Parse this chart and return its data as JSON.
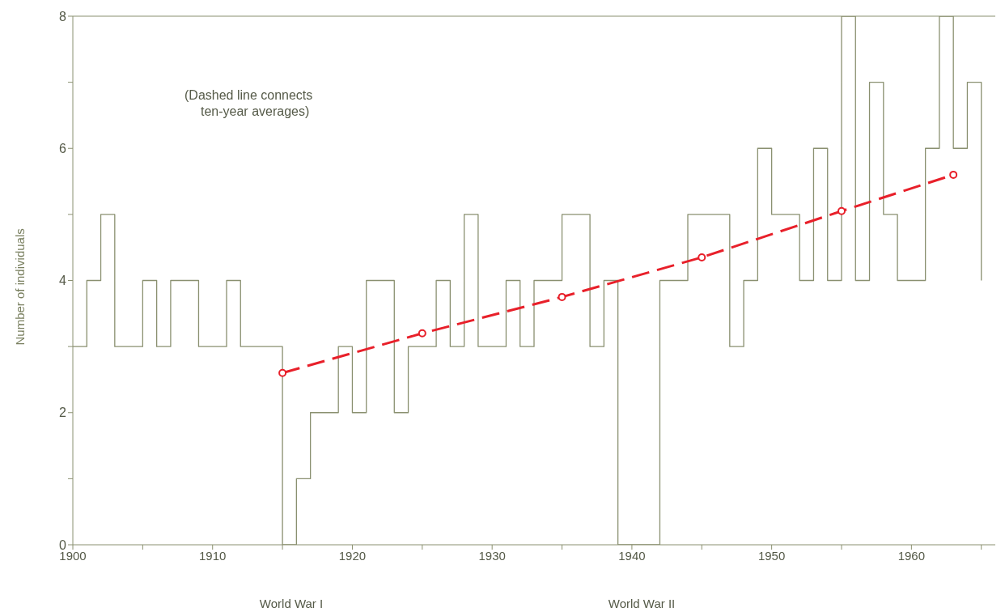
{
  "chart_data": {
    "type": "step",
    "ylabel": "Number of individuals",
    "xlim": [
      1900,
      1966
    ],
    "ylim": [
      0,
      8
    ],
    "xticks": [
      1900,
      {
        "value": 1905,
        "label": null
      },
      1910,
      {
        "value": 1915,
        "label": null
      },
      1920,
      {
        "value": 1925,
        "label": null
      },
      1930,
      {
        "value": 1935,
        "label": null
      },
      1940,
      {
        "value": 1945,
        "label": null
      },
      1950,
      {
        "value": 1955,
        "label": null
      },
      1960,
      {
        "value": 1965,
        "label": null
      }
    ],
    "yticks": [
      0,
      {
        "value": 1,
        "label": null
      },
      2,
      {
        "value": 3,
        "label": null
      },
      4,
      {
        "value": 5,
        "label": null
      },
      6,
      {
        "value": 7,
        "label": null
      },
      8
    ],
    "grid": false,
    "series": [
      {
        "color": "#8a9070",
        "x": [
          1900,
          1901,
          1902,
          1903,
          1904,
          1905,
          1906,
          1907,
          1908,
          1909,
          1910,
          1911,
          1912,
          1913,
          1914,
          1915,
          1916,
          1917,
          1918,
          1919,
          1920,
          1921,
          1922,
          1923,
          1924,
          1925,
          1926,
          1927,
          1928,
          1929,
          1930,
          1931,
          1932,
          1933,
          1934,
          1935,
          1936,
          1937,
          1938,
          1939,
          1940,
          1941,
          1942,
          1943,
          1944,
          1945,
          1946,
          1947,
          1948,
          1949,
          1950,
          1951,
          1952,
          1953,
          1954,
          1955,
          1956,
          1957,
          1958,
          1959,
          1960,
          1961,
          1962,
          1963,
          1964,
          1965
        ],
        "values": [
          3,
          4,
          5,
          3,
          3,
          4,
          3,
          4,
          4,
          3,
          3,
          4,
          3,
          3,
          3,
          0,
          1,
          2,
          2,
          3,
          2,
          4,
          4,
          2,
          3,
          3,
          4,
          3,
          5,
          3,
          3,
          4,
          3,
          4,
          4,
          5,
          5,
          3,
          4,
          0,
          0,
          0,
          4,
          4,
          5,
          5,
          5,
          3,
          4,
          6,
          5,
          5,
          4,
          6,
          4,
          8,
          4,
          7,
          5,
          4,
          4,
          6,
          8,
          6,
          7,
          4
        ],
        "marker": "none",
        "line_style": "solid"
      },
      {
        "type": "line",
        "color": "#e8202a",
        "x": [
          1915,
          1925,
          1935,
          1945,
          1955,
          1963
        ],
        "values": [
          2.6,
          3.2,
          3.75,
          4.35,
          5.05,
          5.6
        ],
        "marker": "circle",
        "line_style": "dashed"
      }
    ],
    "annotations": [
      "(Dashed line connects\nten-year averages)",
      "World War I",
      "World War II"
    ]
  }
}
